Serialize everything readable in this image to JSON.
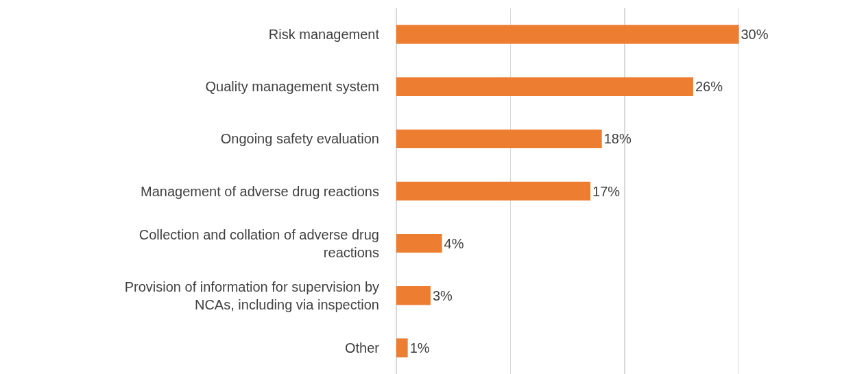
{
  "chart_data": {
    "type": "bar",
    "orientation": "horizontal",
    "categories": [
      "Risk management",
      "Quality management system",
      "Ongoing safety evaluation",
      "Management of adverse drug reactions",
      "Collection and collation of adverse drug reactions",
      "Provision of information for supervision by NCAs, including via inspection",
      "Other"
    ],
    "values": [
      30,
      26,
      18,
      17,
      4,
      3,
      1
    ],
    "value_labels": [
      "30%",
      "26%",
      "18%",
      "17%",
      "4%",
      "3%",
      "1%"
    ],
    "color": "#ed7d31",
    "xlim": [
      0,
      40
    ],
    "tick_labels": "y",
    "grid": "x"
  }
}
